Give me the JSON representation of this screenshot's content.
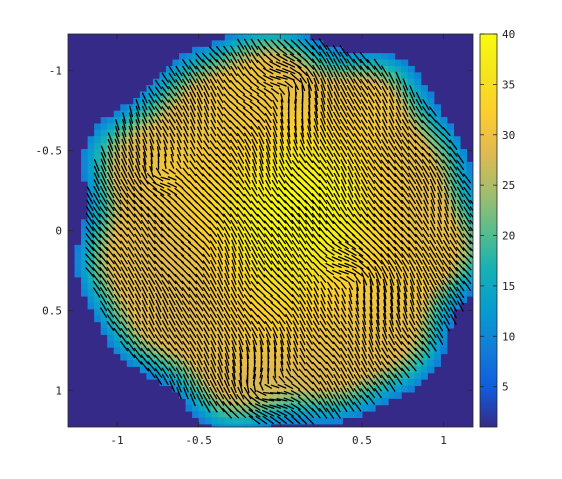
{
  "chart_data": {
    "type": "heatmap",
    "title": "",
    "xlabel": "",
    "ylabel": "",
    "xlim": [
      -1.3,
      1.18
    ],
    "ylim": [
      -1.23,
      1.23
    ],
    "y_reversed": true,
    "x_ticks": [
      -1,
      -0.5,
      0,
      0.5,
      1
    ],
    "x_tick_labels": [
      "-1",
      "-0.5",
      "0",
      "0.5",
      "1"
    ],
    "y_ticks": [
      -1,
      -0.5,
      0,
      0.5,
      1
    ],
    "y_tick_labels": [
      "-1",
      "-0.5",
      "0",
      "0.5",
      "1"
    ],
    "colormap": "parula",
    "clim": [
      1,
      40
    ],
    "colorbar_ticks": [
      5,
      10,
      15,
      20,
      25,
      30,
      35,
      40
    ],
    "colorbar_tick_labels": [
      "5",
      "10",
      "15",
      "20",
      "25",
      "30",
      "35",
      "40"
    ],
    "background_value": 1,
    "domain": {
      "shape": "disk",
      "center": [
        0,
        0
      ],
      "radius": 1.25
    },
    "overlay": "quiver (black velocity arrows) on a uniform grid over the disk",
    "field_value_range": [
      28,
      40
    ],
    "high_region_center": [
      0.1,
      -0.1
    ],
    "vortices": [
      {
        "center": [
          -0.78,
          -0.34
        ],
        "direction": "counterclockwise"
      },
      {
        "center": [
          0.5,
          0.28
        ],
        "direction": "clockwise"
      },
      {
        "center": [
          0.08,
          -0.92
        ],
        "direction": "clockwise"
      },
      {
        "center": [
          -0.15,
          1.0
        ],
        "direction": "counterclockwise"
      }
    ]
  }
}
